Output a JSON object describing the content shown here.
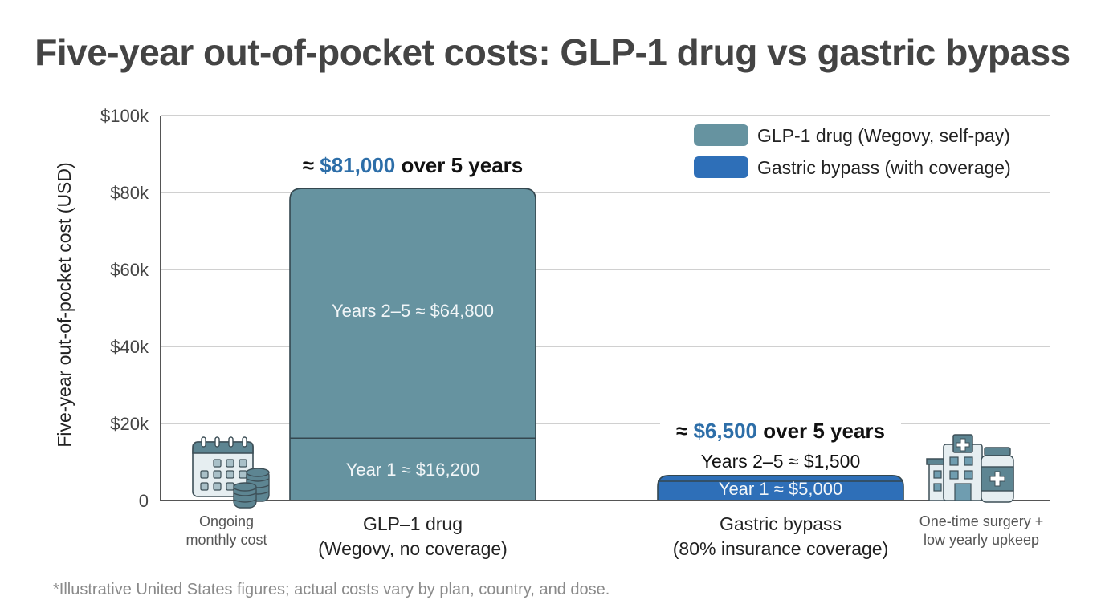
{
  "chart_data": {
    "type": "bar",
    "stacked": true,
    "title": "Five-year out-of-pocket costs: GLP-1 drug vs gastric bypass",
    "xlabel": "",
    "ylabel": "Five-year out-of-pocket cost (USD)",
    "ylim": [
      0,
      100000
    ],
    "yticks": [
      0,
      20000,
      40000,
      60000,
      80000,
      100000
    ],
    "ytick_labels": [
      "0",
      "$20k",
      "$40k",
      "$60k",
      "$80k",
      "$100k"
    ],
    "grid": true,
    "legend_position": "top-right",
    "categories": [
      {
        "line1": "GLP–1 drug",
        "line2": "(Wegovy, no coverage)"
      },
      {
        "line1": "Gastric bypass",
        "line2": "(80% insurance coverage)"
      }
    ],
    "legend": [
      {
        "label": "GLP-1 drug (Wegovy, self-pay)",
        "color": "#6693a0"
      },
      {
        "label": "Gastric bypass (with coverage)",
        "color": "#2e6fb8"
      }
    ],
    "bars": [
      {
        "name": "GLP-1 drug",
        "color": "#6693a0",
        "segments": [
          {
            "name": "Year 1",
            "value": 16200,
            "label": "Year 1 ≈ $16,200"
          },
          {
            "name": "Years 2-5",
            "value": 64800,
            "label": "Years 2–5 ≈ $64,800"
          }
        ],
        "total": 81000,
        "total_prefix": "≈ ",
        "total_value": "$81,000",
        "total_suffix": " over 5 years"
      },
      {
        "name": "Gastric bypass",
        "color": "#2e6fb8",
        "segments": [
          {
            "name": "Year 1",
            "value": 5000,
            "label": "Year 1 ≈ $5,000"
          },
          {
            "name": "Years 2-5",
            "value": 1500,
            "label": "Years 2–5 ≈ $1,500"
          }
        ],
        "total": 6500,
        "total_prefix": "≈ ",
        "total_value": "$6,500",
        "total_suffix": " over 5 years"
      }
    ],
    "annotations": [
      {
        "icon": "calendar-coins-icon",
        "line1": "Ongoing",
        "line2": "monthly cost"
      },
      {
        "icon": "hospital-medicine-icon",
        "line1": "One-time surgery +",
        "line2": "low yearly upkeep"
      }
    ],
    "footnote": "*Illustrative United States figures; actual costs vary by plan, country, and dose."
  }
}
